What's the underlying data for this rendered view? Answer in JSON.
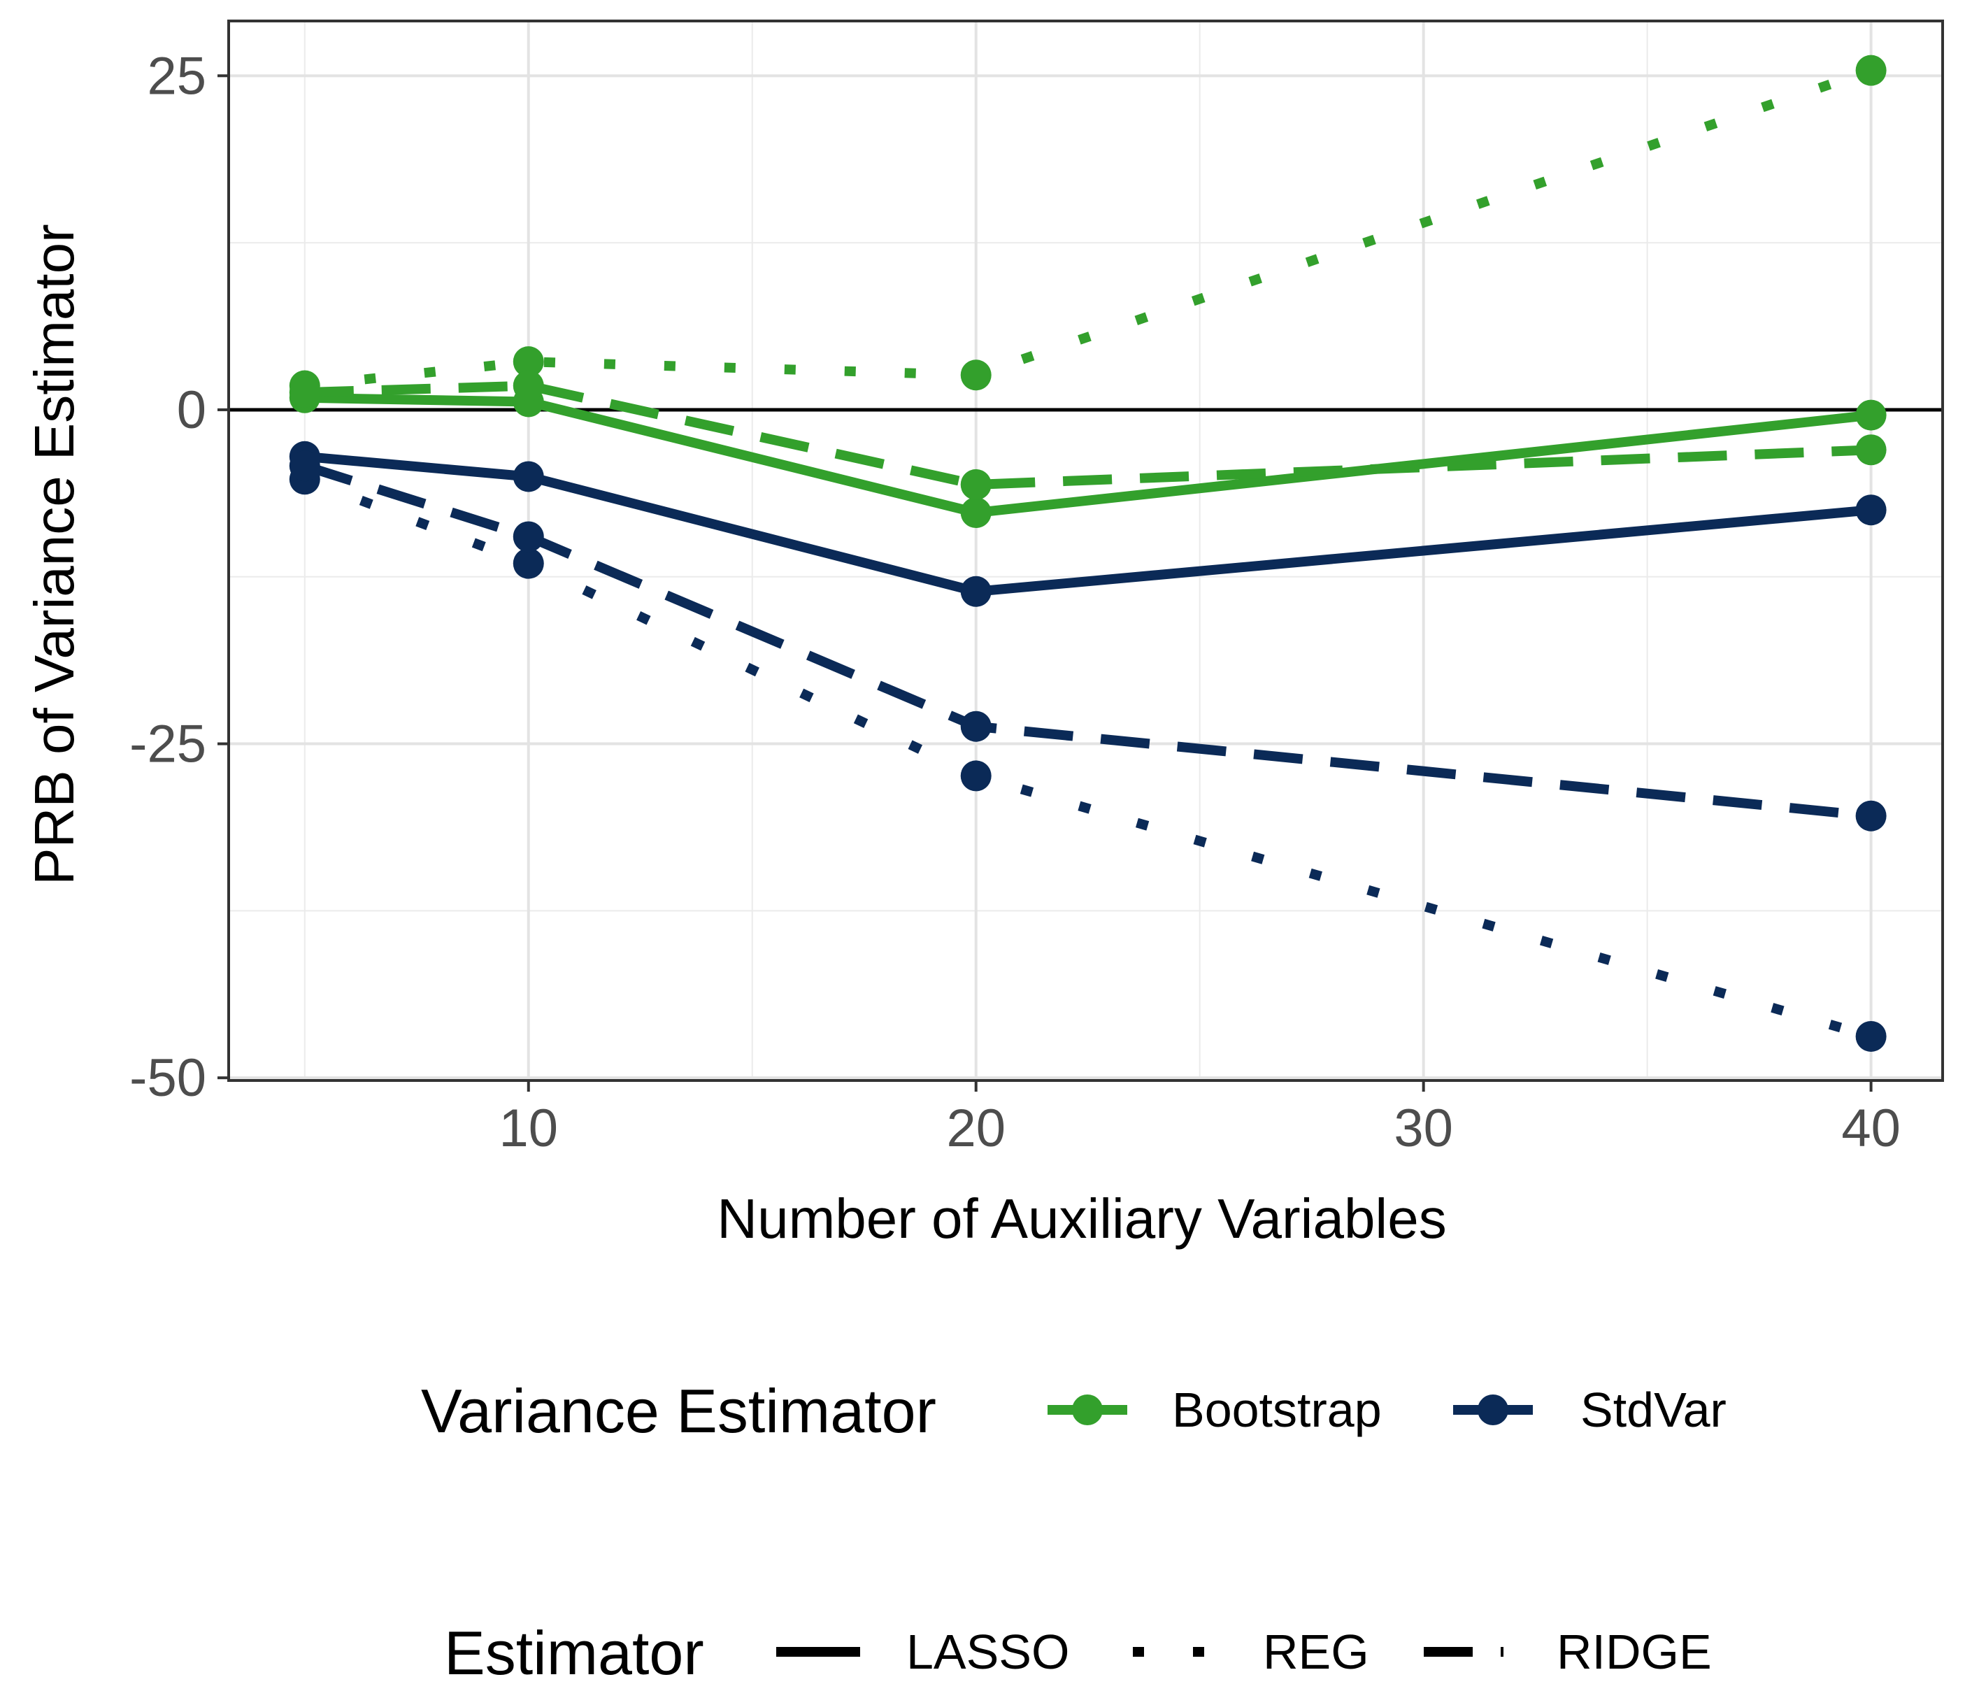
{
  "chart_data": {
    "type": "line",
    "title": "",
    "xlabel": "Number of Auxiliary Variables",
    "ylabel": "PRB of Variance Estimator",
    "x": [
      5,
      10,
      20,
      40
    ],
    "xlim": [
      3.3,
      41.6
    ],
    "ylim": [
      -50.2,
      29.1
    ],
    "xticks": [
      10,
      20,
      30,
      40
    ],
    "xtick_labels": [
      "10",
      "20",
      "30",
      "40"
    ],
    "yticks": [
      25,
      0,
      -25,
      -50
    ],
    "ytick_labels": [
      "25",
      "0",
      "-25",
      "-50"
    ],
    "x_minor_grid": [
      5,
      15,
      25,
      35
    ],
    "y_minor_grid": [
      12.5,
      -12.5,
      -37.5
    ],
    "reference_line_y": 0,
    "grid": true,
    "colors": {
      "Bootstrap": "#33a02c",
      "StdVar": "#0b2a57"
    },
    "dash_styles": {
      "LASSO": "solid",
      "REG": "dotted",
      "RIDGE": "dashed"
    },
    "series": [
      {
        "name": "Bootstrap LASSO",
        "variance_estimator": "Bootstrap",
        "estimator": "LASSO",
        "values": [
          0.9,
          0.6,
          -7.7,
          -0.4
        ]
      },
      {
        "name": "Bootstrap REG",
        "variance_estimator": "Bootstrap",
        "estimator": "REG",
        "values": [
          1.8,
          3.6,
          2.6,
          25.4
        ]
      },
      {
        "name": "Bootstrap RIDGE",
        "variance_estimator": "Bootstrap",
        "estimator": "RIDGE",
        "values": [
          1.3,
          1.8,
          -5.6,
          -3.0
        ]
      },
      {
        "name": "StdVar LASSO",
        "variance_estimator": "StdVar",
        "estimator": "LASSO",
        "values": [
          -3.5,
          -5.0,
          -13.6,
          -7.5
        ]
      },
      {
        "name": "StdVar REG",
        "variance_estimator": "StdVar",
        "estimator": "REG",
        "values": [
          -5.2,
          -11.5,
          -27.4,
          -46.9
        ]
      },
      {
        "name": "StdVar RIDGE",
        "variance_estimator": "StdVar",
        "estimator": "RIDGE",
        "values": [
          -4.2,
          -9.5,
          -23.7,
          -30.4
        ]
      }
    ],
    "legends": [
      {
        "title": "Variance Estimator",
        "position": "bottom",
        "entries": [
          {
            "label": "Bootstrap",
            "color": "#33a02c"
          },
          {
            "label": "StdVar",
            "color": "#0b2a57"
          }
        ]
      },
      {
        "title": "Estimator",
        "position": "bottom",
        "entries": [
          {
            "label": "LASSO",
            "dash": "solid"
          },
          {
            "label": "REG",
            "dash": "dotted"
          },
          {
            "label": "RIDGE",
            "dash": "dashed"
          }
        ]
      }
    ]
  }
}
